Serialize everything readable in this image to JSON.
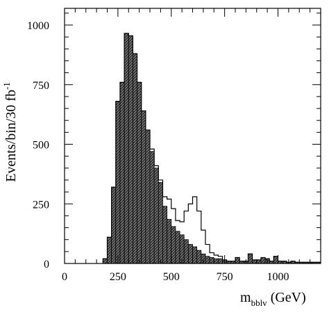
{
  "chart_data": {
    "type": "bar",
    "xlabel_main": "m",
    "xlabel_sub": "bblv",
    "xlabel_unit": " (GeV)",
    "ylabel_main": "Events/bin/30 fb",
    "ylabel_sup": "-1",
    "xlim": [
      0,
      1200
    ],
    "ylim": [
      0,
      1070
    ],
    "x_ticks": [
      0,
      250,
      500,
      750,
      1000
    ],
    "y_ticks": [
      0,
      250,
      500,
      750,
      1000
    ],
    "x_tick_labels": [
      "0",
      "250",
      "500",
      "750",
      "1000"
    ],
    "y_tick_labels": [
      "0",
      "250",
      "500",
      "750",
      "1000"
    ],
    "bin_width": 20,
    "bins_start": 180,
    "series": [
      {
        "style": "hatched-filled",
        "values": [
          20,
          110,
          320,
          680,
          760,
          965,
          955,
          880,
          760,
          640,
          560,
          470,
          400,
          340,
          240,
          185,
          155,
          135,
          120,
          100,
          80,
          70,
          55,
          40,
          30,
          25,
          20,
          20,
          15,
          10,
          10,
          25,
          10,
          10,
          40,
          15,
          15,
          25,
          20,
          10,
          30,
          10,
          10,
          5,
          10,
          5,
          5,
          5,
          5,
          5,
          5
        ]
      },
      {
        "style": "outline",
        "values": [
          20,
          110,
          320,
          680,
          760,
          965,
          955,
          880,
          760,
          640,
          560,
          480,
          410,
          350,
          280,
          270,
          230,
          180,
          175,
          220,
          250,
          280,
          220,
          140,
          80,
          45,
          35,
          30,
          15,
          10,
          10,
          25,
          10,
          10,
          40,
          15,
          15,
          25,
          20,
          10,
          30,
          10,
          10,
          5,
          10,
          5,
          5,
          5,
          5,
          5,
          5
        ]
      }
    ]
  }
}
